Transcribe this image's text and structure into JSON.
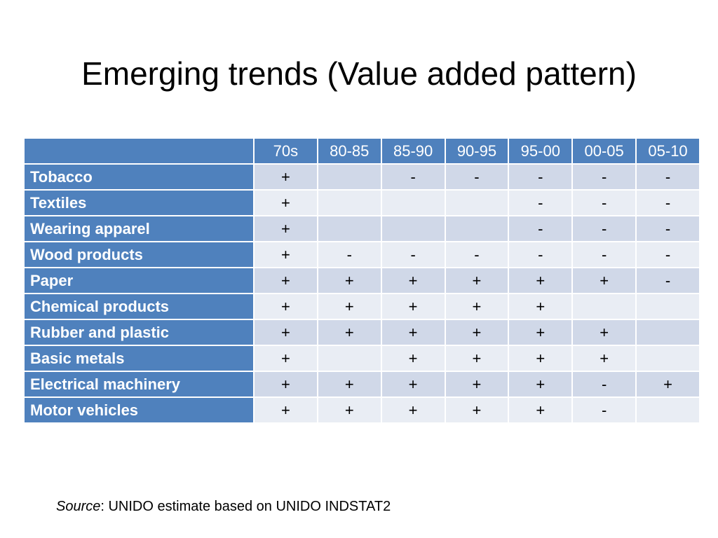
{
  "title": "Emerging trends (Value added pattern)",
  "table": {
    "corner": "",
    "columns": [
      "70s",
      "80-85",
      "85-90",
      "90-95",
      "95-00",
      "00-05",
      "05-10"
    ],
    "rows": [
      {
        "label": "Tobacco",
        "cells": [
          "+",
          "",
          "-",
          "-",
          "-",
          "-",
          "-"
        ]
      },
      {
        "label": "Textiles",
        "cells": [
          "+",
          "",
          "",
          "",
          "-",
          "-",
          "-"
        ]
      },
      {
        "label": "Wearing apparel",
        "cells": [
          "+",
          "",
          "",
          "",
          "-",
          "-",
          "-"
        ]
      },
      {
        "label": "Wood products",
        "cells": [
          "+",
          "-",
          "-",
          "-",
          "-",
          "-",
          "-"
        ]
      },
      {
        "label": "Paper",
        "cells": [
          "+",
          "+",
          "+",
          "+",
          "+",
          "+",
          "-"
        ]
      },
      {
        "label": "Chemical products",
        "cells": [
          "+",
          "+",
          "+",
          "+",
          "+",
          "",
          ""
        ]
      },
      {
        "label": "Rubber and plastic",
        "cells": [
          "+",
          "+",
          "+",
          "+",
          "+",
          "+",
          ""
        ]
      },
      {
        "label": "Basic metals",
        "cells": [
          "+",
          "",
          "+",
          "+",
          "+",
          "+",
          ""
        ]
      },
      {
        "label": "Electrical machinery",
        "cells": [
          "+",
          "+",
          "+",
          "+",
          "+",
          "-",
          "+"
        ]
      },
      {
        "label": "Motor vehicles",
        "cells": [
          "+",
          "+",
          "+",
          "+",
          "+",
          "-",
          ""
        ]
      }
    ]
  },
  "source": {
    "label": "Source",
    "text": ": UNIDO estimate based on UNIDO INDSTAT2"
  },
  "colors": {
    "header": "#4f81bd",
    "band_dark": "#d0d8e8",
    "band_light": "#e9edf4"
  }
}
